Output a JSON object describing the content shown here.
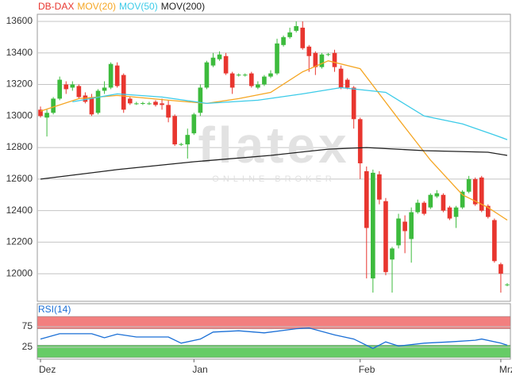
{
  "chart_data": [
    {
      "type": "candlestick",
      "name": "DB-DAX",
      "name_color": "#e8362f",
      "up_color": "#3dbb3d",
      "down_color": "#e8362f",
      "watermark": "flatex",
      "watermark_sub": "ONLINE BROKER",
      "categories": [
        "Dez",
        null,
        null,
        null,
        null,
        null,
        null,
        null,
        null,
        null,
        null,
        null,
        null,
        null,
        null,
        null,
        null,
        null,
        null,
        null,
        null,
        null,
        null,
        null,
        "Jan",
        null,
        null,
        null,
        null,
        null,
        null,
        null,
        null,
        null,
        null,
        null,
        null,
        null,
        null,
        null,
        null,
        null,
        null,
        null,
        null,
        null,
        null,
        null,
        null,
        null,
        "Feb",
        null,
        null,
        null,
        null,
        null,
        null,
        null,
        null,
        null,
        null,
        null,
        null,
        null,
        null,
        null,
        null,
        null,
        null,
        null,
        null,
        null,
        "Mrz",
        null
      ],
      "open": [
        13040,
        12990,
        13020,
        13110,
        13200,
        13180,
        13190,
        13130,
        13120,
        13020,
        13160,
        13180,
        13320,
        13260,
        13110,
        13080,
        13080,
        13080,
        13090,
        13080,
        13070,
        13000,
        12820,
        12820,
        12890,
        13020,
        13180,
        13320,
        13360,
        13380,
        13270,
        13260,
        13260,
        13270,
        13180,
        13200,
        13250,
        13270,
        13450,
        13500,
        13540,
        13560,
        13440,
        13400,
        13310,
        13390,
        13400,
        13300,
        13230,
        13180,
        12980,
        12650,
        11970,
        12630,
        12460,
        12090,
        12180,
        12330,
        12220,
        12390,
        12450,
        12420,
        12490,
        12500,
        12420,
        12360,
        12420,
        12520,
        12600,
        12610,
        12430,
        12340,
        12060,
        11930
      ],
      "high": [
        13060,
        13040,
        13120,
        13250,
        13220,
        13220,
        13200,
        13150,
        13140,
        13170,
        13220,
        13340,
        13340,
        13270,
        13120,
        13090,
        13090,
        13090,
        13100,
        13110,
        13100,
        13010,
        12830,
        12920,
        13020,
        13200,
        13350,
        13400,
        13410,
        13400,
        13280,
        13270,
        13270,
        13280,
        13220,
        13260,
        13290,
        13490,
        13510,
        13560,
        13600,
        13600,
        13450,
        13410,
        13400,
        13400,
        13420,
        13320,
        13240,
        13190,
        12990,
        12680,
        12660,
        12650,
        12480,
        12170,
        12380,
        12370,
        12420,
        12470,
        12460,
        12510,
        12530,
        12510,
        12430,
        12430,
        12530,
        12620,
        12610,
        12620,
        12440,
        12350,
        12070,
        11940
      ],
      "low": [
        12990,
        12870,
        13010,
        13100,
        13140,
        13160,
        13110,
        13080,
        13000,
        13010,
        13140,
        13170,
        13180,
        13020,
        13070,
        13070,
        13070,
        13070,
        13060,
        13040,
        12960,
        12810,
        12810,
        12730,
        12880,
        13000,
        13170,
        13310,
        13350,
        13260,
        13140,
        13250,
        13250,
        13180,
        13170,
        13190,
        13240,
        13260,
        13440,
        13490,
        13530,
        13420,
        13280,
        13260,
        13300,
        13380,
        13280,
        13170,
        13170,
        12920,
        12600,
        11970,
        11880,
        12440,
        11990,
        11880,
        12160,
        12130,
        12070,
        12380,
        12370,
        12410,
        12480,
        12390,
        12340,
        12290,
        12410,
        12510,
        12430,
        12390,
        12350,
        12070,
        11880,
        11920
      ],
      "close": [
        13000,
        13020,
        13110,
        13230,
        13170,
        13200,
        13120,
        13090,
        13010,
        13160,
        13180,
        13330,
        13190,
        13040,
        13080,
        13080,
        13082,
        13080,
        13070,
        13070,
        12990,
        12820,
        12822,
        12880,
        13010,
        13180,
        13340,
        13370,
        13390,
        13270,
        13180,
        13262,
        13262,
        13190,
        13200,
        13250,
        13270,
        13460,
        13500,
        13530,
        13570,
        13430,
        13380,
        13310,
        13390,
        13392,
        13310,
        13180,
        13180,
        12980,
        12700,
        12290,
        12640,
        12470,
        12010,
        12160,
        12350,
        12270,
        12390,
        12450,
        12380,
        12500,
        12510,
        12400,
        12350,
        12420,
        12520,
        12600,
        12440,
        12400,
        12360,
        12080,
        12000,
        11932
      ],
      "overlays": [
        {
          "name": "MOV(20)",
          "color": "#f5a623",
          "x": [
            0,
            6,
            12,
            20,
            26,
            31,
            36,
            41,
            45,
            50,
            56,
            61,
            66,
            70,
            73
          ],
          "values": [
            13030,
            13110,
            13130,
            13100,
            13080,
            13110,
            13150,
            13280,
            13350,
            13300,
            12980,
            12720,
            12500,
            12420,
            12340
          ]
        },
        {
          "name": "MOV(50)",
          "color": "#3ccbe8",
          "x": [
            5,
            12,
            19,
            26,
            34,
            41,
            47,
            54,
            60,
            66,
            71,
            73
          ],
          "values": [
            13090,
            13140,
            13120,
            13080,
            13100,
            13140,
            13180,
            13150,
            13000,
            12950,
            12880,
            12850
          ]
        },
        {
          "name": "MOV(200)",
          "color": "#222222",
          "x": [
            0,
            12,
            24,
            36,
            45,
            51,
            60,
            70,
            73
          ],
          "values": [
            12600,
            12660,
            12710,
            12750,
            12790,
            12800,
            12780,
            12770,
            12750
          ]
        }
      ],
      "ylim": [
        11825,
        13645
      ],
      "yticks": [
        12000,
        12200,
        12400,
        12600,
        12800,
        13000,
        13200,
        13400,
        13600
      ],
      "grid": true
    },
    {
      "type": "line",
      "series": [
        {
          "name": "RSI(14)",
          "color": "#1a6fd6",
          "x": [
            0,
            3,
            8,
            10,
            12,
            15,
            20,
            22,
            25,
            27,
            31,
            35,
            40,
            42,
            46,
            49,
            52,
            54,
            56,
            60,
            64,
            68,
            69,
            72,
            73
          ],
          "values": [
            45,
            58,
            58,
            48,
            57,
            50,
            50,
            35,
            45,
            62,
            65,
            60,
            70,
            72,
            55,
            45,
            22,
            38,
            28,
            35,
            38,
            42,
            45,
            35,
            30
          ]
        }
      ],
      "bands": [
        {
          "from": 70,
          "to": 100,
          "color": "#f27f7f"
        },
        {
          "from": 0,
          "to": 30,
          "color": "#66cc66"
        }
      ],
      "ylim": [
        -4,
        131
      ],
      "yticks": [
        25,
        75
      ],
      "grid": true
    }
  ]
}
